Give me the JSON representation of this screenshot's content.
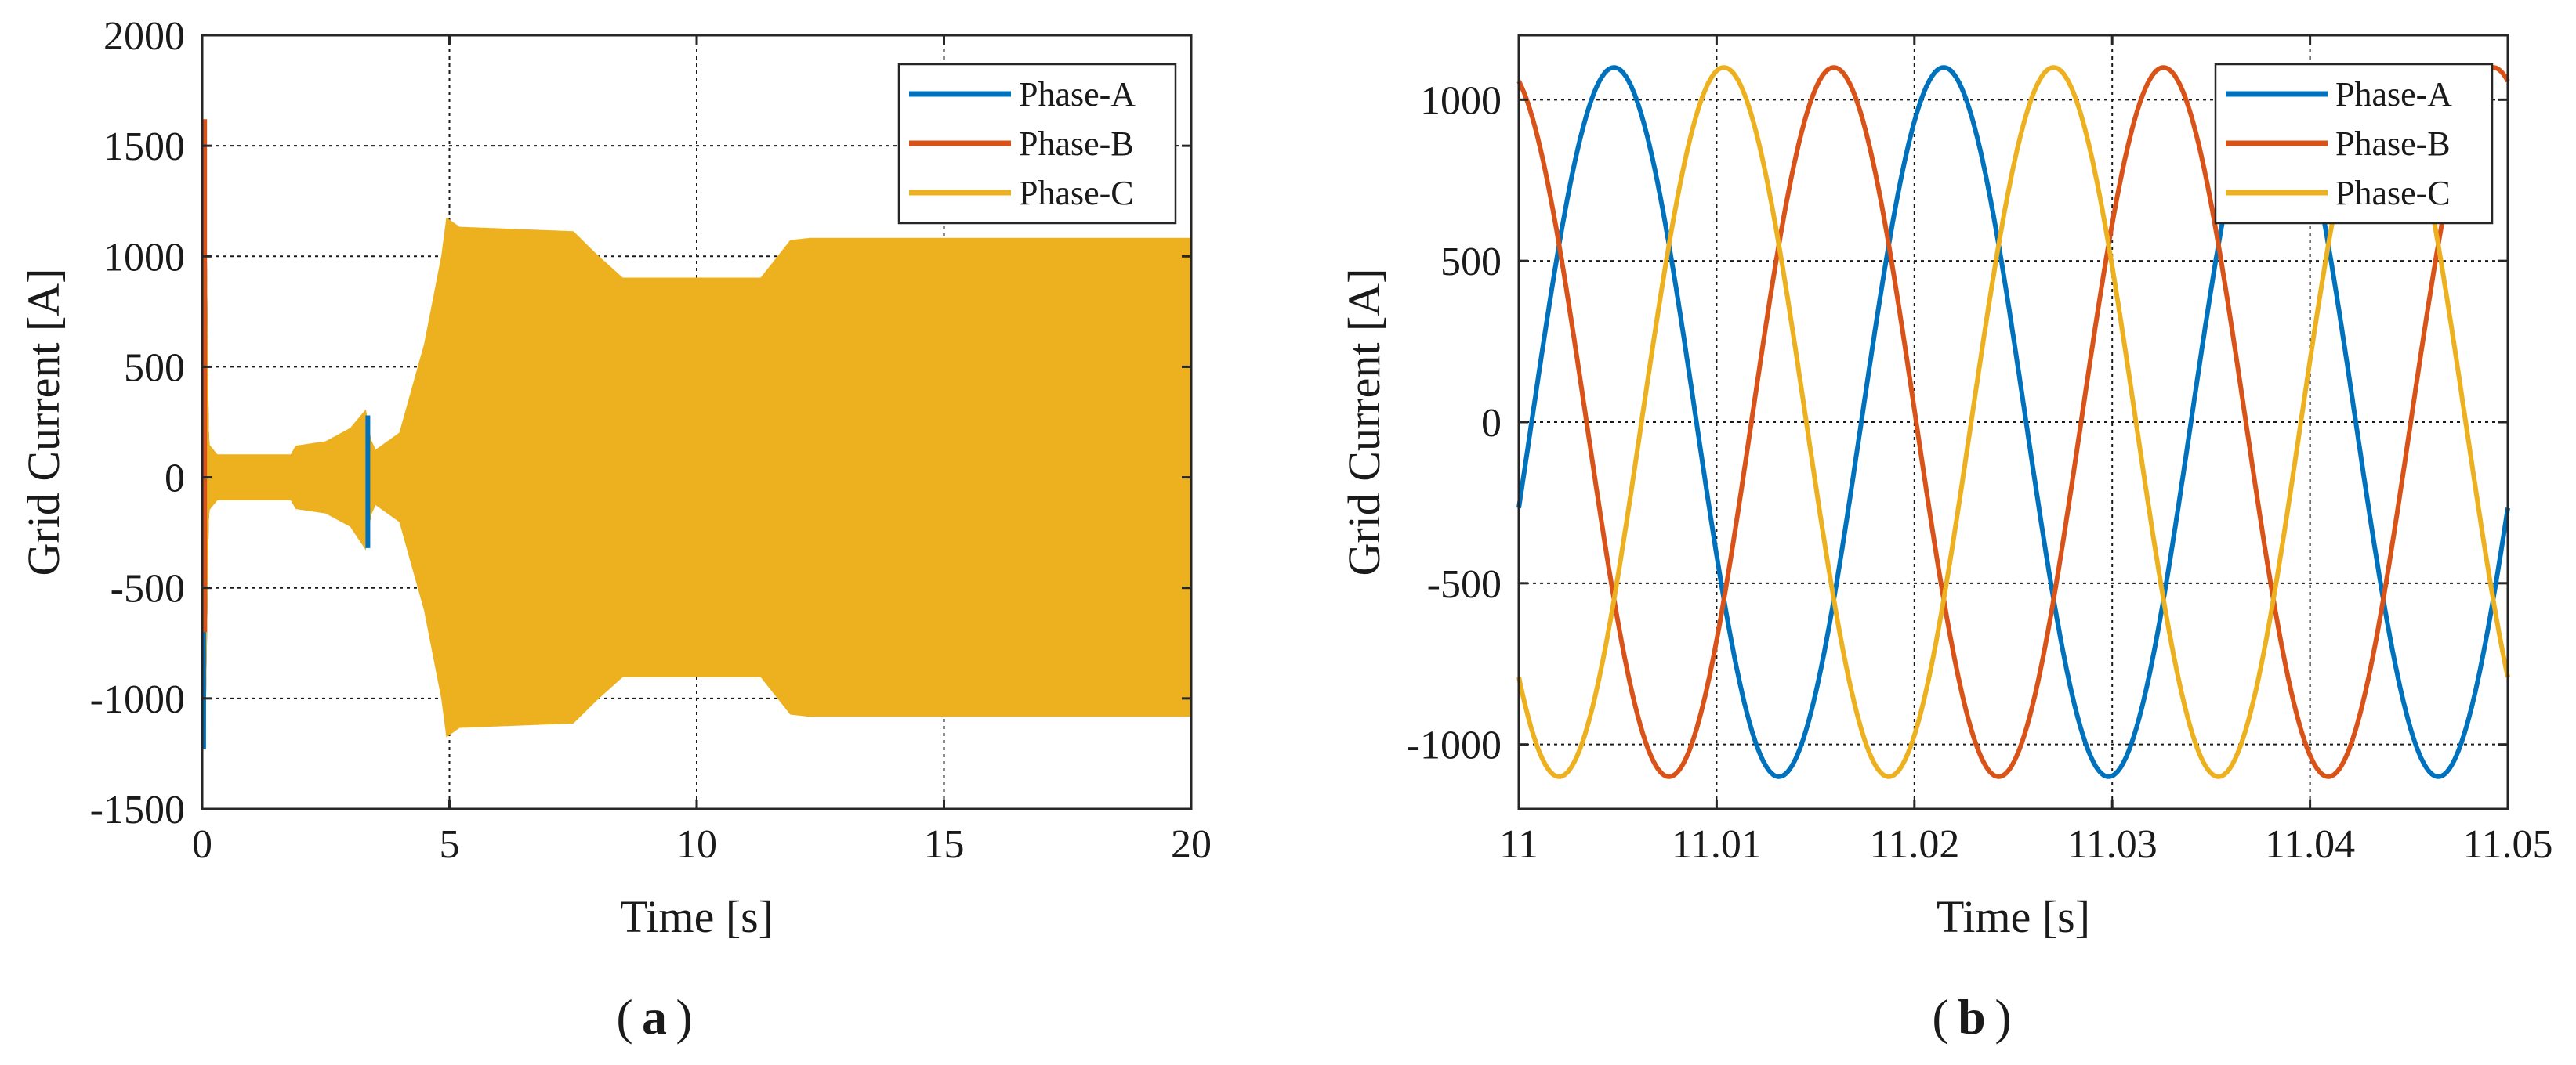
{
  "chart_data": [
    {
      "type": "line",
      "panel_label": "a",
      "xlabel": "Time [s]",
      "ylabel": "Grid Current [A]",
      "xlim": [
        0,
        20
      ],
      "ylim": [
        -1500,
        2000
      ],
      "xticks": [
        0,
        5,
        10,
        15,
        20
      ],
      "xtick_labels": [
        "0",
        "5",
        "10",
        "15",
        "20"
      ],
      "yticks": [
        -1500,
        -1000,
        -500,
        0,
        500,
        1000,
        1500,
        2000
      ],
      "ytick_labels": [
        "-1500",
        "-1000",
        "-500",
        "0",
        "500",
        "1000",
        "1500",
        "2000"
      ],
      "grid": true,
      "legend_position": "top-right",
      "series": [
        {
          "name": "Phase-A",
          "color": "#0072BD"
        },
        {
          "name": "Phase-B",
          "color": "#D95319"
        },
        {
          "name": "Phase-C",
          "color": "#EDB120"
        }
      ],
      "envelope": {
        "description_free": true,
        "x": [
          0,
          0.05,
          0.12,
          0.3,
          1.0,
          1.8,
          1.9,
          2.5,
          3.0,
          3.3,
          3.4,
          3.5,
          4.0,
          4.5,
          4.85,
          4.95,
          5.2,
          7.5,
          8.0,
          8.5,
          11.3,
          11.9,
          12.3,
          20
        ],
        "upper": [
          900,
          1600,
          150,
          100,
          100,
          100,
          140,
          160,
          220,
          300,
          170,
          120,
          200,
          600,
          1000,
          1170,
          1130,
          1110,
          1000,
          900,
          900,
          1070,
          1080,
          1080
        ],
        "lower": [
          -900,
          -1200,
          -150,
          -100,
          -100,
          -100,
          -140,
          -160,
          -220,
          -320,
          -170,
          -120,
          -200,
          -600,
          -1000,
          -1170,
          -1130,
          -1110,
          -1000,
          -900,
          -900,
          -1070,
          -1080,
          -1080
        ]
      },
      "spikes": [
        {
          "x": 0.03,
          "series": "Phase-A",
          "values": [
            -1230,
            120
          ]
        },
        {
          "x": 0.05,
          "series": "Phase-B",
          "values": [
            1620,
            -700
          ]
        },
        {
          "x": 3.35,
          "series": "Phase-A",
          "values": [
            -320,
            280
          ]
        }
      ]
    },
    {
      "type": "line",
      "panel_label": "b",
      "xlabel": "Time [s]",
      "ylabel": "Grid Current [A]",
      "xlim": [
        11,
        11.05
      ],
      "ylim": [
        -1200,
        1200
      ],
      "xticks": [
        11,
        11.01,
        11.02,
        11.03,
        11.04,
        11.05
      ],
      "xtick_labels": [
        "11",
        "11.01",
        "11.02",
        "11.03",
        "11.04",
        "11.05"
      ],
      "yticks": [
        -1000,
        -500,
        0,
        500,
        1000
      ],
      "ytick_labels": [
        "-1000",
        "-500",
        "0",
        "500",
        "1000"
      ],
      "grid": true,
      "legend_position": "top-right",
      "frequency_hz": 60,
      "amplitude": 1100,
      "series": [
        {
          "name": "Phase-A",
          "color": "#0072BD",
          "phase_deg": -14
        },
        {
          "name": "Phase-B",
          "color": "#D95319",
          "phase_deg": 106
        },
        {
          "name": "Phase-C",
          "color": "#EDB120",
          "phase_deg": -134
        }
      ]
    }
  ]
}
